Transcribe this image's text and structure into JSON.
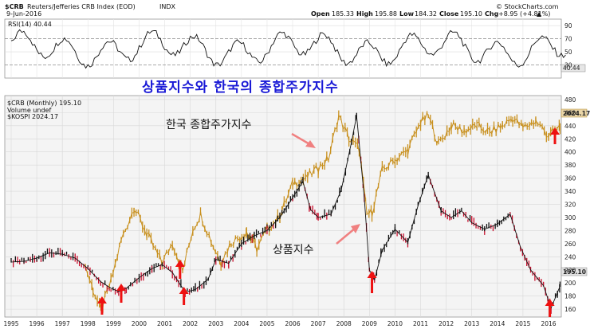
{
  "header": {
    "symbol": "$CRB",
    "name": "Reuters/Jefferies CRB Index (EOD)",
    "exchange": "INDX",
    "date": "9-Jun-2016",
    "open_label": "Open",
    "open": "185.33",
    "high_label": "High",
    "high": "195.88",
    "low_label": "Low",
    "low": "184.32",
    "close_label": "Close",
    "close": "195.10",
    "chg_label": "Chg",
    "chg": "+8.95 (+4.81%)",
    "chg_arrow": "▲",
    "brand": "© StockCharts.com"
  },
  "rsi_panel": {
    "label": "RSI(14) 40.44",
    "value_badge": "40.44",
    "levels": [
      90,
      70,
      50,
      30
    ]
  },
  "main_panel": {
    "legend_crb": "$CRB (Monthly) 195.10",
    "legend_volume": "Volume undef",
    "legend_kospi": "$KOSPI 2024.17",
    "kospi_badge": "2024.17",
    "crb_badge": "195.10",
    "title": "상품지수와 한국의 종합주가지수",
    "annotation_kospi": "한국 종합주가지수",
    "annotation_crb": "상품지수"
  },
  "colors": {
    "crb": "#111111",
    "crb_down": "#c8102e",
    "kospi": "#c8901e",
    "arrow": "#ee1111",
    "title": "#1a1ad6",
    "grid": "#d8d8d8",
    "panel_bg": "#f2f2f2"
  },
  "chart_data": {
    "type": "line",
    "title": "상품지수와 한국의 종합주가지수",
    "x_unit": "year",
    "x_ticks": [
      "1995",
      "1996",
      "1997",
      "1998",
      "1999",
      "2000",
      "2001",
      "2002",
      "2003",
      "2004",
      "2005",
      "2006",
      "2007",
      "2008",
      "2009",
      "2010",
      "2011",
      "2012",
      "2013",
      "2014",
      "2015",
      "2016"
    ],
    "y_right_ticks": [
      160,
      180,
      200,
      220,
      240,
      260,
      280,
      300,
      320,
      340,
      360,
      380,
      400,
      420,
      440,
      460,
      480
    ],
    "ylim": [
      148,
      486
    ],
    "grid": true,
    "series": [
      {
        "name": "$CRB (Monthly)",
        "last": 195.1,
        "points": [
          [
            1995.0,
            232
          ],
          [
            1995.5,
            233
          ],
          [
            1996.0,
            238
          ],
          [
            1996.5,
            246
          ],
          [
            1997.0,
            244
          ],
          [
            1997.5,
            238
          ],
          [
            1998.0,
            222
          ],
          [
            1998.5,
            202
          ],
          [
            1998.9,
            192
          ],
          [
            1999.2,
            187
          ],
          [
            1999.5,
            192
          ],
          [
            2000.0,
            208
          ],
          [
            2000.5,
            222
          ],
          [
            2000.9,
            228
          ],
          [
            2001.3,
            216
          ],
          [
            2001.8,
            186
          ],
          [
            2002.2,
            190
          ],
          [
            2002.7,
            206
          ],
          [
            2003.0,
            236
          ],
          [
            2003.5,
            230
          ],
          [
            2004.0,
            260
          ],
          [
            2004.5,
            272
          ],
          [
            2005.0,
            280
          ],
          [
            2005.5,
            300
          ],
          [
            2006.0,
            330
          ],
          [
            2006.4,
            355
          ],
          [
            2006.7,
            312
          ],
          [
            2007.0,
            300
          ],
          [
            2007.5,
            305
          ],
          [
            2007.9,
            342
          ],
          [
            2008.3,
            415
          ],
          [
            2008.5,
            455
          ],
          [
            2008.8,
            330
          ],
          [
            2009.0,
            220
          ],
          [
            2009.2,
            205
          ],
          [
            2009.5,
            250
          ],
          [
            2010.0,
            282
          ],
          [
            2010.5,
            262
          ],
          [
            2010.9,
            318
          ],
          [
            2011.3,
            365
          ],
          [
            2011.8,
            310
          ],
          [
            2012.2,
            300
          ],
          [
            2012.6,
            310
          ],
          [
            2013.0,
            292
          ],
          [
            2013.5,
            282
          ],
          [
            2014.0,
            290
          ],
          [
            2014.5,
            305
          ],
          [
            2014.9,
            255
          ],
          [
            2015.3,
            220
          ],
          [
            2015.8,
            196
          ],
          [
            2016.1,
            162
          ],
          [
            2016.45,
            195
          ]
        ]
      },
      {
        "name": "$KOSPI",
        "last": 2024.17,
        "points": [
          [
            1997.9,
            225
          ],
          [
            1998.2,
            190
          ],
          [
            1998.5,
            158
          ],
          [
            1998.9,
            202
          ],
          [
            1999.3,
            265
          ],
          [
            1999.8,
            315
          ],
          [
            2000.3,
            275
          ],
          [
            2000.9,
            230
          ],
          [
            2001.3,
            262
          ],
          [
            2001.7,
            218
          ],
          [
            2002.1,
            282
          ],
          [
            2002.4,
            305
          ],
          [
            2002.9,
            256
          ],
          [
            2003.2,
            232
          ],
          [
            2003.6,
            262
          ],
          [
            2004.2,
            278
          ],
          [
            2004.6,
            252
          ],
          [
            2005.0,
            282
          ],
          [
            2005.5,
            302
          ],
          [
            2006.0,
            352
          ],
          [
            2006.5,
            360
          ],
          [
            2007.0,
            375
          ],
          [
            2007.4,
            390
          ],
          [
            2007.8,
            455
          ],
          [
            2008.2,
            420
          ],
          [
            2008.6,
            405
          ],
          [
            2008.9,
            305
          ],
          [
            2009.1,
            308
          ],
          [
            2009.5,
            372
          ],
          [
            2010.0,
            388
          ],
          [
            2010.5,
            402
          ],
          [
            2011.0,
            445
          ],
          [
            2011.3,
            455
          ],
          [
            2011.7,
            412
          ],
          [
            2012.2,
            440
          ],
          [
            2012.7,
            432
          ],
          [
            2013.2,
            440
          ],
          [
            2013.7,
            430
          ],
          [
            2014.2,
            440
          ],
          [
            2014.6,
            452
          ],
          [
            2015.0,
            437
          ],
          [
            2015.5,
            447
          ],
          [
            2016.0,
            425
          ],
          [
            2016.45,
            438
          ]
        ]
      }
    ],
    "annotations": [
      {
        "text": "상품지수와 한국의 종합주가지수"
      },
      {
        "text": "한국 종합주가지수"
      },
      {
        "text": "상품지수"
      }
    ]
  }
}
